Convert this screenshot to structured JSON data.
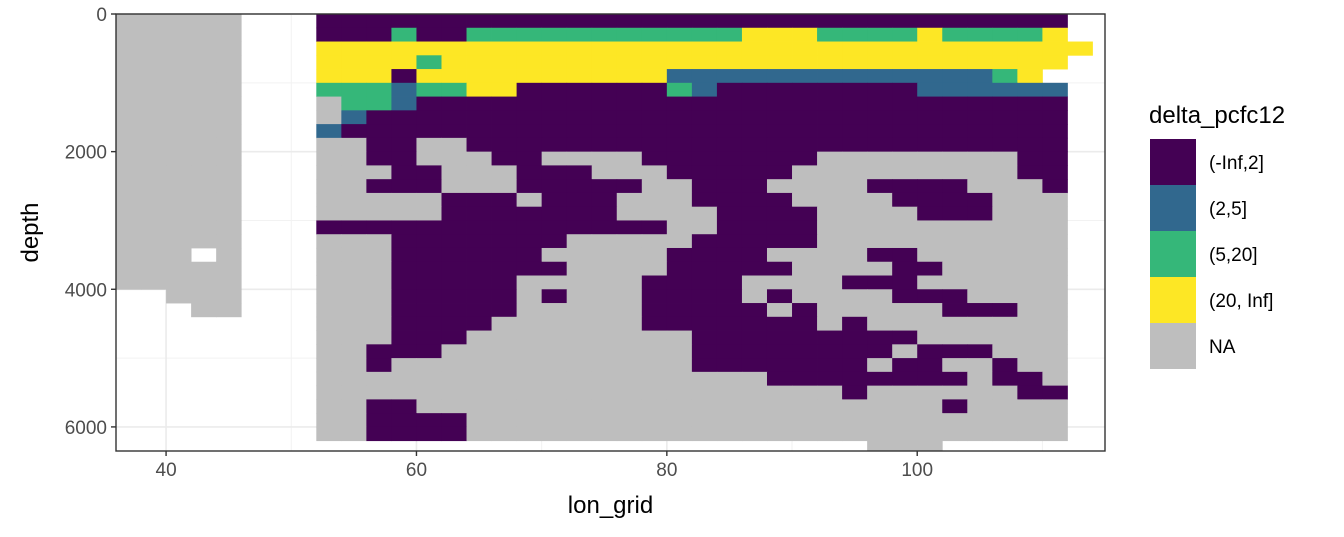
{
  "chart_data": {
    "type": "heatmap",
    "xlabel": "lon_grid",
    "ylabel": "depth",
    "xlim": [
      36,
      115
    ],
    "ylim": [
      0,
      6350
    ],
    "y_reversed": true,
    "x_ticks": [
      40,
      60,
      80,
      100
    ],
    "y_ticks": [
      0,
      2000,
      4000,
      6000
    ],
    "grid": true,
    "legend": {
      "title": "delta_pcfc12",
      "position": "right",
      "entries": [
        {
          "key": "a",
          "label": "(-Inf,2]",
          "color": "#440154"
        },
        {
          "key": "b",
          "label": "(2,5]",
          "color": "#31688E"
        },
        {
          "key": "c",
          "label": "(5,20]",
          "color": "#35B779"
        },
        {
          "key": "d",
          "label": "(20, Inf]",
          "color": "#FDE725"
        },
        {
          "key": "n",
          "label": "NA",
          "color": "#BEBEBE"
        }
      ]
    },
    "grid_spec": {
      "x_start": 36,
      "x_step": 2,
      "y_start": 0,
      "y_step": 200
    },
    "rows": [
      "nnnnn...aaaaaaaaaaaaaaaaaaaaaaaaaaaaaa",
      "nnnnn...aaacaacccccccccccdddccccdccccd",
      "nnnnn...ddddddddddddddddddddddddddddddd",
      "nnnnn...ddddcddddddddddddddddddddddddd",
      "nnnnn...dddaddddddddddbbbbbbbbbbbbbcd",
      "nnnnn...cccbccddaaaaaacbaaaaaaaabbbbbb",
      "nnnnn...nccbaaaaaaaaaaaaaaaaaaaaaaaaaa",
      "nnnnn...nbaaaaaaaaaaaaaaaaaaaaaaaaaaaa",
      "nnnnn...baaaaaaaaaaaaaaaaaaaaaaaaaaaaa",
      "nnnnn...nnaannaaaaaaaaaaaaaaaaaaaaaaaa",
      "nnnnn...nnaannnaannnnaaaaaaannnnnnnnaa",
      "nnnnn...nnnaannnaaannnaaaaannnnnnnnnaa",
      "nnnnn...nnaaannnaaaaannaaannnnaaaannna",
      "nnnnn...nnnnnaaanaaannnaaaannnnaaaannn",
      "nnnnn...nnnnnaaaaaaannnnaaaannnnaaannn",
      "nnnnn...aaaaaaaaaaaaaannaaaannnnnnnnnn",
      "nnnnn...nnnaaaaaaannnnnaaaaannnnnnnnnn",
      "nnn.n...nnnaaaaaannnnnaaaannnnaannnnnn",
      "nnnnn...nnnaaaaaaannnnaaaaannnnaannnnn",
      "nnnnn...nnnaaaaannnnnaaaannnnaaannnnnn",
      "..nnn...nnnaaaaanannnaaaanannnnaaannnn",
      "...nn...nnnaaaaannnnnaaaaanannnnnaaann",
      "........nnnaaaannnnnnaaaaaaanannnnnnnn",
      "........nnnaaannnnnnnnnaaaaaaaaannnnnn",
      "........nnaaannnnnnnnnnaaaaaaaanaaannn",
      "........nnannnnnnnnnnnnaaaaaaanaannann",
      "........nnnnnnnnnnnnnnnnnnaaaaaaaanaan",
      "........nnnnnnnnnnnnnnnnnnnnnannnnnnaa",
      "........nnaannnnnnnnnnnnnnnnnnnnnannnn",
      "........nnaaaannnnnnnnnnnnnnnnnnnnnnnn",
      "........nnaaaannnnnnnnnnnnnnnnnnnnnnnn",
      "..............................nnn.....",
      "..............................nnn.....",
      "..............................nnn....."
    ]
  }
}
